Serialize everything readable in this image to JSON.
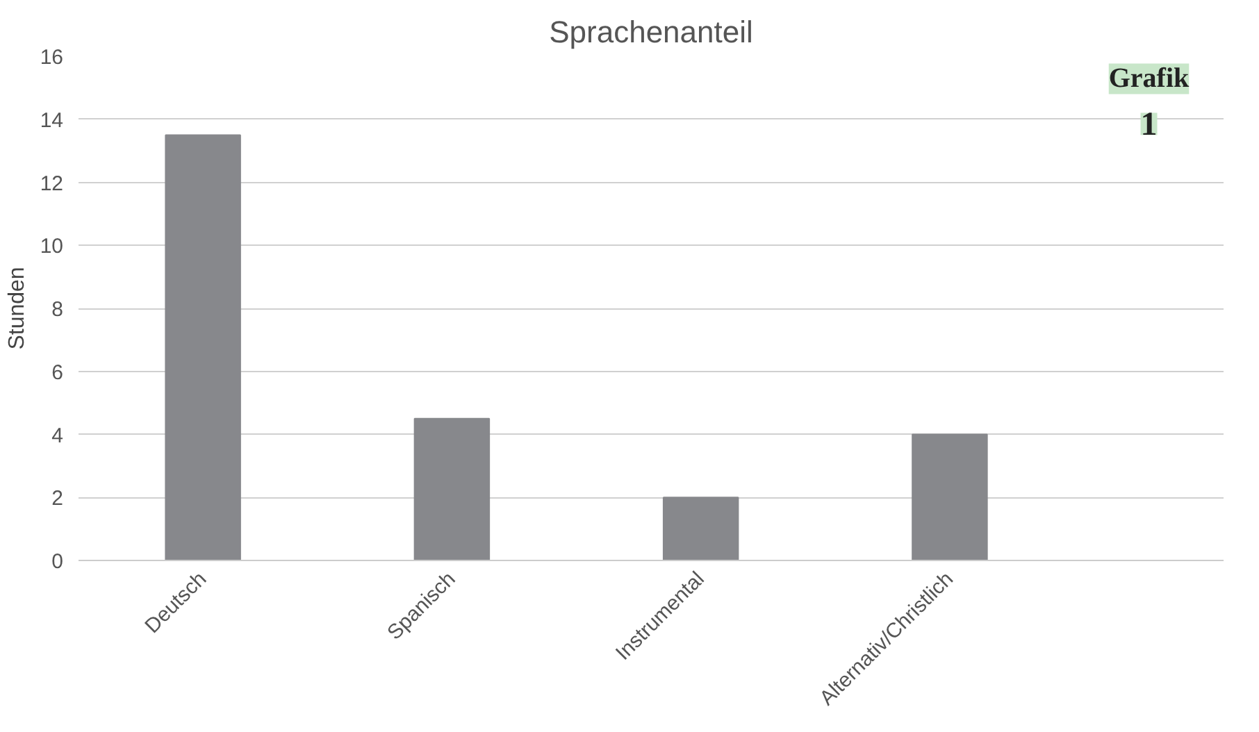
{
  "chart_data": {
    "type": "bar",
    "title": "Sprachenanteil",
    "ylabel": "Stunden",
    "categories": [
      "Deutsch",
      "Spanisch",
      "Instrumental",
      "Alternativ/Christlich"
    ],
    "values": [
      13.5,
      4.5,
      2,
      4
    ],
    "color": "#87888c",
    "ylim": [
      0,
      16
    ],
    "yticks": [
      0,
      2,
      4,
      6,
      8,
      10,
      12,
      14,
      16
    ],
    "grid": "y",
    "annotations": [
      "Grafik",
      "1"
    ]
  }
}
